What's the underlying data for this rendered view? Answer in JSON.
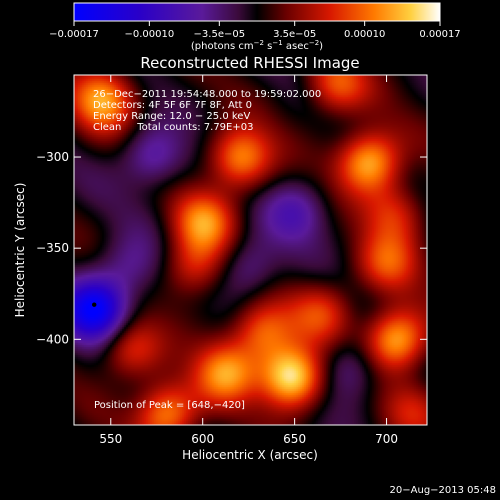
{
  "chart_data": {
    "type": "heatmap",
    "title": "Reconstructed RHESSI Image",
    "xlabel": "Heliocentric X (arcsec)",
    "ylabel": "Heliocentric Y (arcsec)",
    "xlim": [
      530,
      722
    ],
    "ylim": [
      -447,
      -255
    ],
    "x_ticks": [
      550,
      600,
      650,
      700
    ],
    "y_ticks": [
      -300,
      -350,
      -400
    ],
    "x_tick_labels": [
      "550",
      "600",
      "650",
      "700"
    ],
    "y_tick_labels": [
      "−300",
      "−350",
      "−400"
    ],
    "colorbar": {
      "min": -0.00017,
      "max": 0.00017,
      "tick_labels": [
        "−0.00017",
        "−0.00010",
        "−3.5e−05",
        "3.5e−05",
        "0.00010",
        "0.00017"
      ],
      "tick_values": [
        -0.00017,
        -0.0001,
        -3.5e-05,
        3.5e-05,
        0.0001,
        0.00017
      ],
      "unit_prefix": "(photons cm",
      "unit_exp1": "−2",
      "unit_mid": " s",
      "unit_exp2": "−1",
      "unit_mid2": " asec",
      "unit_exp3": "−2",
      "unit_suffix": ")"
    },
    "annotations": [
      "26−Dec−2011 19:54:48.000 to 19:59:02.000",
      "Detectors: 4F 5F 6F 7F 8F, Att 0",
      "Energy Range: 12.0 − 25.0 keV",
      "Clean     Total counts: 7.79E+03"
    ],
    "peak_label": "Position of Peak = [648,−420]",
    "marker": {
      "x": 541,
      "y": -381
    },
    "features": [
      {
        "x": 541,
        "y": -383,
        "value": -0.00017
      },
      {
        "x": 545,
        "y": -268,
        "value": 0.00012
      },
      {
        "x": 560,
        "y": -405,
        "value": 8e-05
      },
      {
        "x": 580,
        "y": -440,
        "value": 0.00012
      },
      {
        "x": 595,
        "y": -360,
        "value": 8e-05
      },
      {
        "x": 600,
        "y": -335,
        "value": 0.0001
      },
      {
        "x": 620,
        "y": -300,
        "value": 0.00012
      },
      {
        "x": 612,
        "y": -418,
        "value": 0.00011
      },
      {
        "x": 648,
        "y": -420,
        "value": 0.00017
      },
      {
        "x": 632,
        "y": -395,
        "value": 0.0001
      },
      {
        "x": 672,
        "y": -260,
        "value": 9e-05
      },
      {
        "x": 690,
        "y": -302,
        "value": 0.00014
      },
      {
        "x": 704,
        "y": -330,
        "value": 7e-05
      },
      {
        "x": 705,
        "y": -400,
        "value": 0.00014
      },
      {
        "x": 700,
        "y": -358,
        "value": 8e-05
      },
      {
        "x": 665,
        "y": -385,
        "value": 7e-05
      },
      {
        "x": 625,
        "y": -360,
        "value": -6e-05
      },
      {
        "x": 572,
        "y": -300,
        "value": -7e-05
      },
      {
        "x": 650,
        "y": -330,
        "value": -6e-05
      },
      {
        "x": 560,
        "y": -360,
        "value": -5e-05
      },
      {
        "x": 680,
        "y": -415,
        "value": -6e-05
      },
      {
        "x": 715,
        "y": -440,
        "value": 5e-05
      }
    ]
  },
  "footer": {
    "timestamp": "20−Aug−2013 05:48"
  }
}
